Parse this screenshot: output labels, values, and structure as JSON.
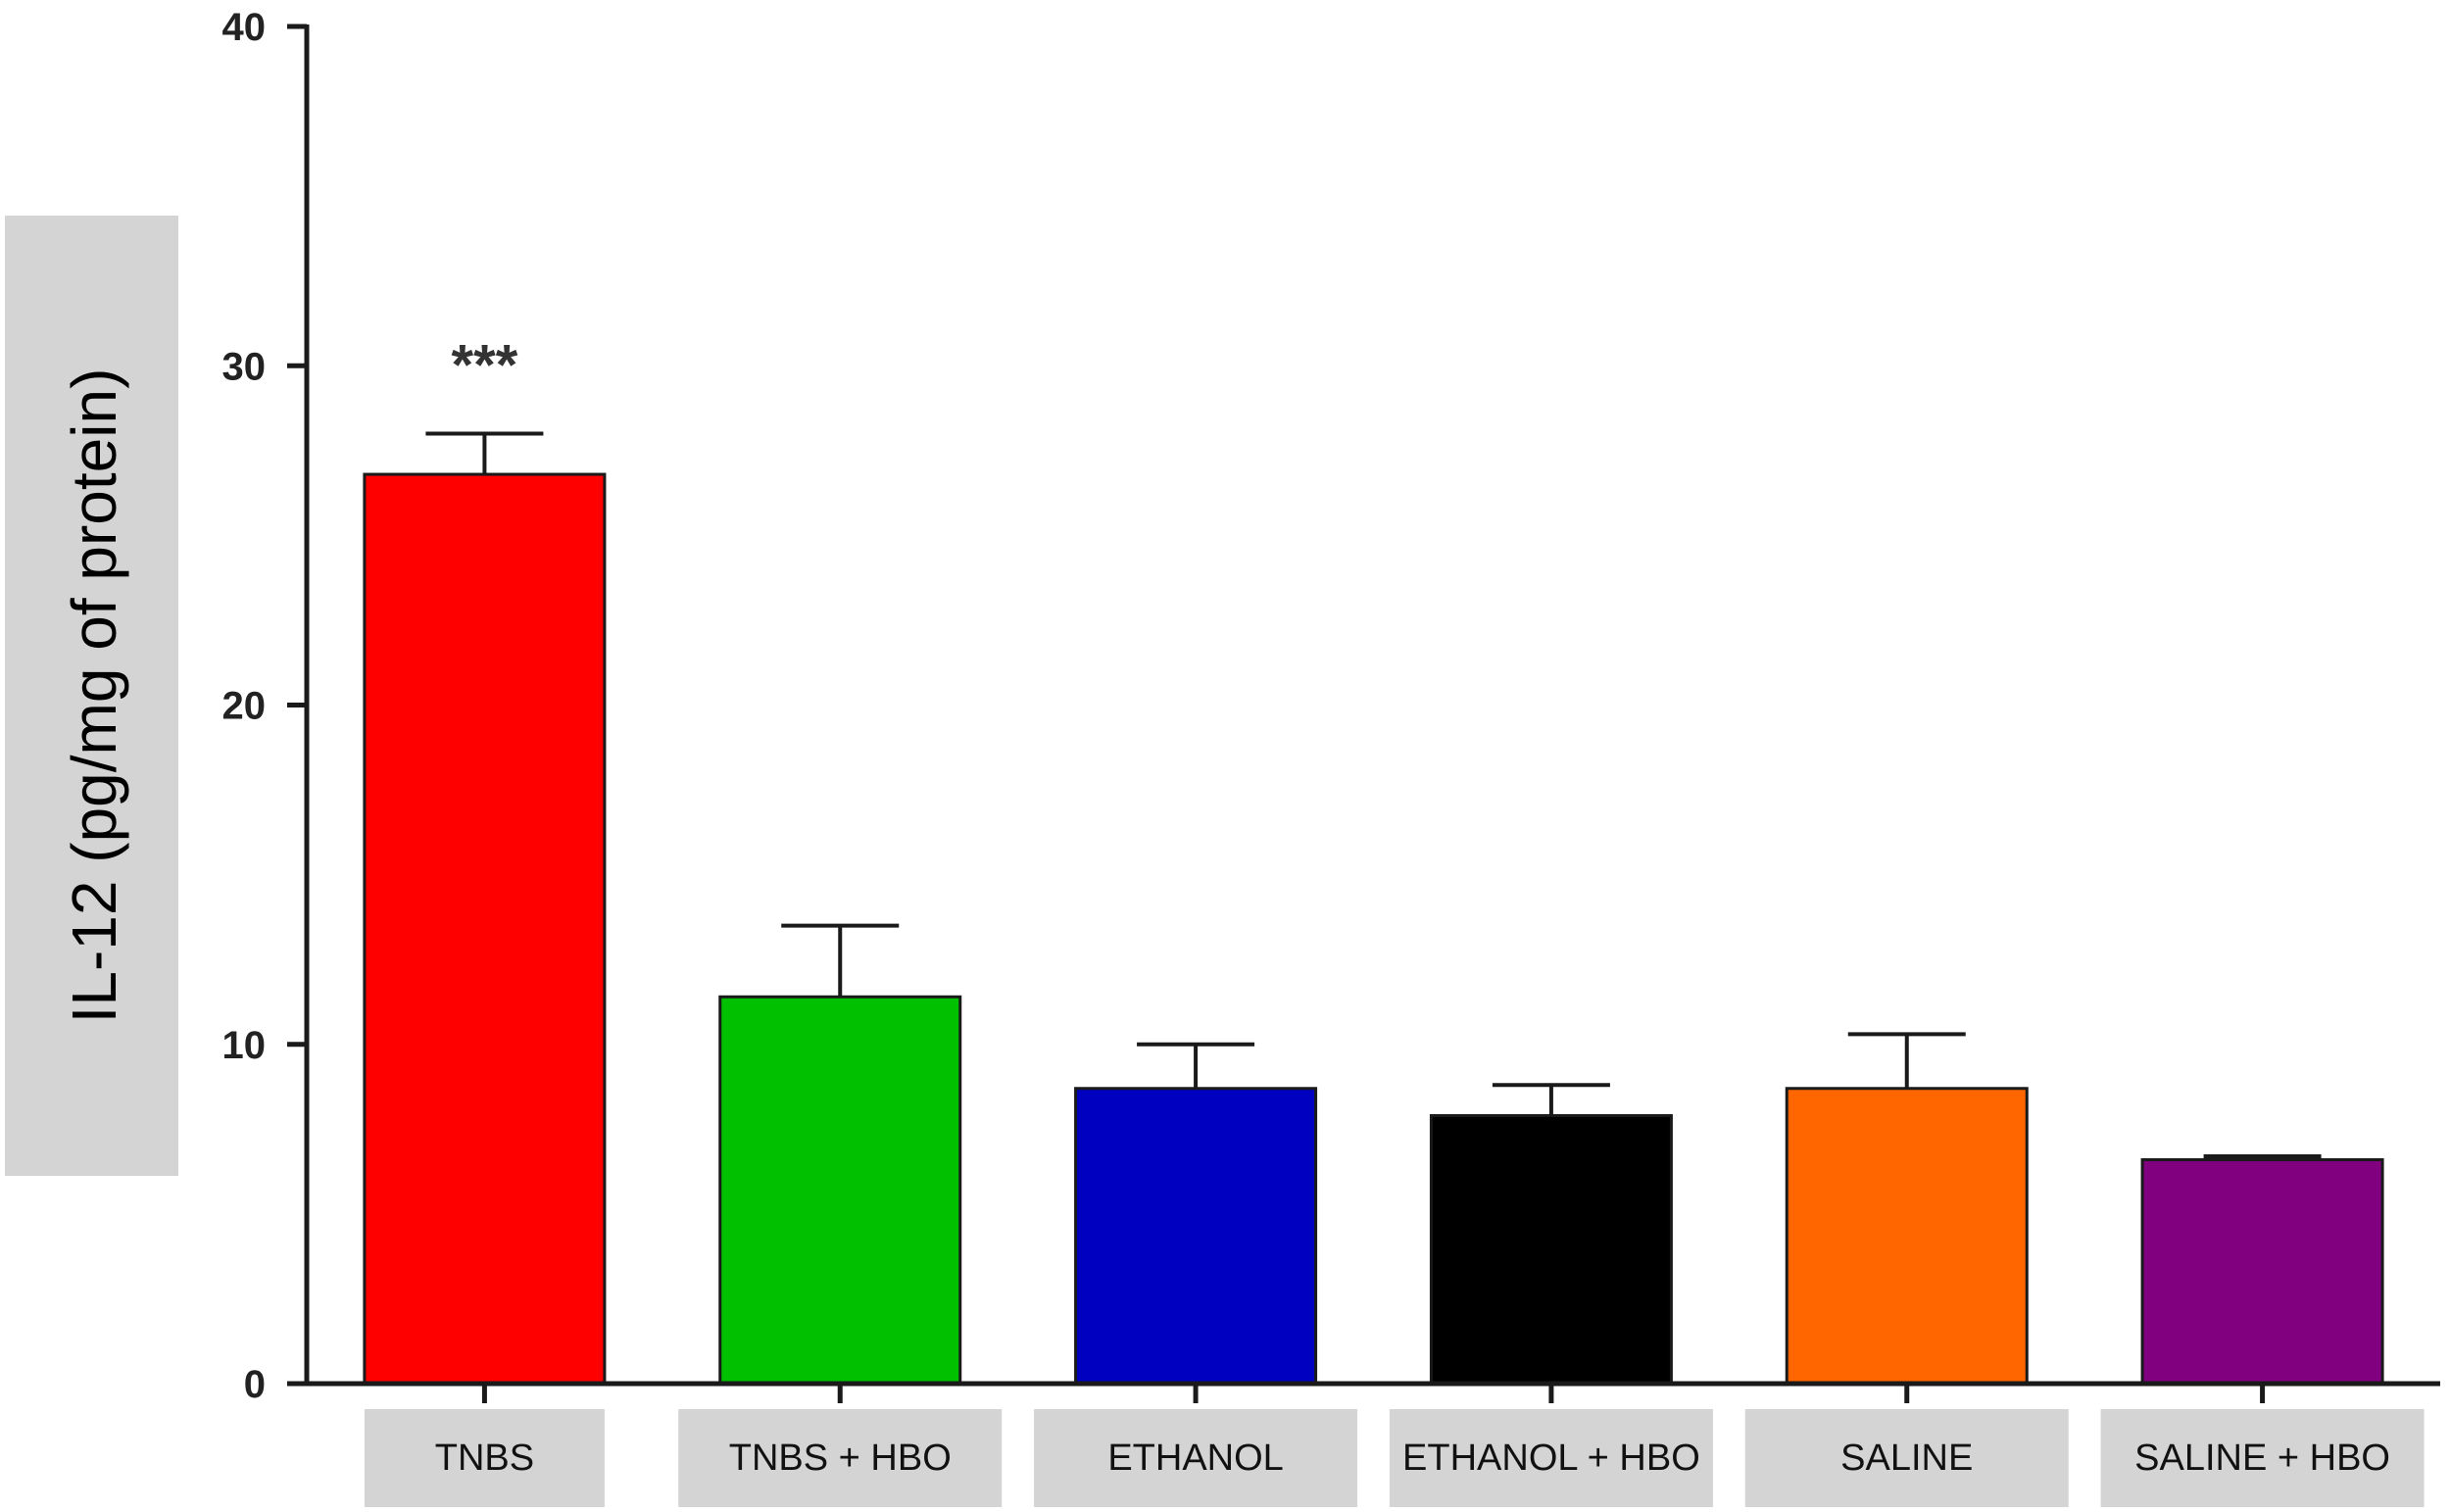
{
  "chart_data": {
    "type": "bar",
    "title": "",
    "xlabel": "",
    "ylabel": "IL-12 (pg/mg of protein)",
    "ylim": [
      0,
      40
    ],
    "yticks": [
      0,
      10,
      20,
      30,
      40
    ],
    "grid": false,
    "legend": "none",
    "categories": [
      "TNBS",
      "TNBS + HBO",
      "ETHANOL",
      "ETHANOL  + HBO",
      "SALINE",
      "SALINE + HBO"
    ],
    "values": [
      26.8,
      11.4,
      8.7,
      7.9,
      8.7,
      6.6
    ],
    "errors": [
      1.2,
      2.1,
      1.3,
      0.9,
      1.6,
      0.1
    ],
    "colors": [
      "#ff0000",
      "#00c000",
      "#0000c0",
      "#000000",
      "#ff6600",
      "#800080"
    ],
    "annotations": [
      {
        "category": "TNBS",
        "text": "***"
      }
    ]
  }
}
